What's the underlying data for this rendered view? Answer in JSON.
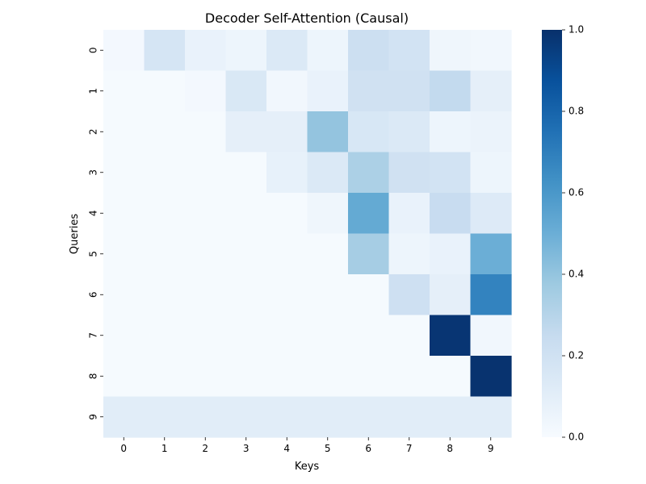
{
  "chart_data": {
    "type": "heatmap",
    "title": "Decoder Self-Attention (Causal)",
    "xlabel": "Keys",
    "ylabel": "Queries",
    "x_categories": [
      "0",
      "1",
      "2",
      "3",
      "4",
      "5",
      "6",
      "7",
      "8",
      "9"
    ],
    "y_categories": [
      "0",
      "1",
      "2",
      "3",
      "4",
      "5",
      "6",
      "7",
      "8",
      "9"
    ],
    "values": [
      [
        0.02,
        0.17,
        0.07,
        0.05,
        0.14,
        0.05,
        0.22,
        0.19,
        0.04,
        0.03
      ],
      [
        0.01,
        0.01,
        0.02,
        0.15,
        0.03,
        0.07,
        0.2,
        0.2,
        0.26,
        0.09
      ],
      [
        0.01,
        0.01,
        0.01,
        0.09,
        0.09,
        0.4,
        0.16,
        0.14,
        0.05,
        0.06
      ],
      [
        0.01,
        0.01,
        0.01,
        0.01,
        0.08,
        0.14,
        0.33,
        0.2,
        0.19,
        0.05
      ],
      [
        0.01,
        0.01,
        0.01,
        0.01,
        0.01,
        0.04,
        0.52,
        0.07,
        0.24,
        0.13
      ],
      [
        0.01,
        0.01,
        0.01,
        0.01,
        0.01,
        0.01,
        0.35,
        0.05,
        0.07,
        0.5
      ],
      [
        0.01,
        0.01,
        0.01,
        0.01,
        0.01,
        0.01,
        0.01,
        0.21,
        0.09,
        0.68
      ],
      [
        0.01,
        0.01,
        0.01,
        0.01,
        0.01,
        0.01,
        0.01,
        0.01,
        0.98,
        0.03
      ],
      [
        0.01,
        0.01,
        0.01,
        0.01,
        0.01,
        0.01,
        0.01,
        0.01,
        0.01,
        0.99
      ],
      [
        0.11,
        0.11,
        0.11,
        0.11,
        0.11,
        0.11,
        0.11,
        0.11,
        0.11,
        0.11
      ]
    ],
    "vmin": 0.0,
    "vmax": 1.0,
    "colormap": "Blues",
    "colorbar_ticks": [
      "0.0",
      "0.2",
      "0.4",
      "0.6",
      "0.8",
      "1.0"
    ],
    "colorbar_tick_values": [
      0.0,
      0.2,
      0.4,
      0.6,
      0.8,
      1.0
    ],
    "grid": false
  },
  "colors": {
    "background": "#ffffff",
    "text": "#000000",
    "colormap_stops": [
      "#f7fbff",
      "#deebf7",
      "#c6dbef",
      "#9ecae1",
      "#6baed6",
      "#4292c6",
      "#2171b5",
      "#08519c",
      "#08306b"
    ]
  }
}
